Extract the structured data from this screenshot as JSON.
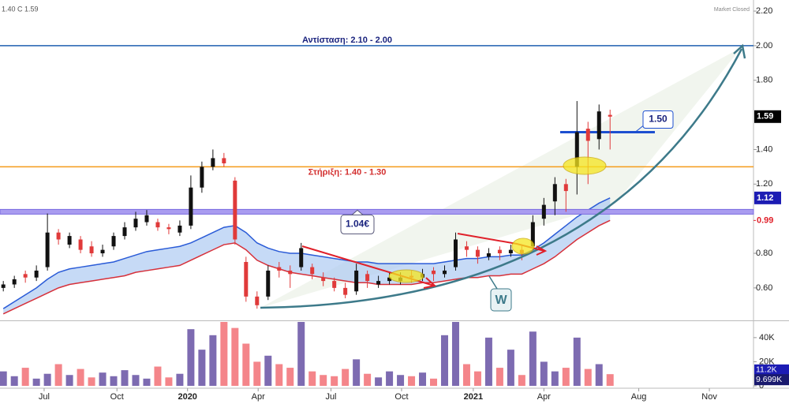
{
  "chart_data": {
    "type": "candlestick",
    "header_text": "1.40 C 1.59",
    "status_text": "Market Closed",
    "xlim": [
      -0.3,
      68
    ],
    "xticks": [
      {
        "value": 3.7,
        "label": "Jul"
      },
      {
        "value": 10.3,
        "label": "Oct"
      },
      {
        "value": 16.7,
        "label": "2020"
      },
      {
        "value": 23.1,
        "label": "Apr"
      },
      {
        "value": 29.7,
        "label": "Jul"
      },
      {
        "value": 36.1,
        "label": "Oct"
      },
      {
        "value": 42.6,
        "label": "2021"
      },
      {
        "value": 49,
        "label": "Apr"
      },
      {
        "value": 57.6,
        "label": "Aug"
      },
      {
        "value": 64,
        "label": "Nov"
      }
    ],
    "ylim": [
      0.417,
      2.264
    ],
    "yticks": [
      {
        "value": 0.6,
        "label": "0.60"
      },
      {
        "value": 0.8,
        "label": "0.80"
      },
      {
        "value": 1.2,
        "label": "1.20"
      },
      {
        "value": 1.4,
        "label": "1.40"
      },
      {
        "value": 1.8,
        "label": "1.80"
      },
      {
        "value": 2.0,
        "label": "2.00"
      },
      {
        "value": 2.2,
        "label": "2.20"
      }
    ],
    "volume_ylim": [
      0,
      53000
    ],
    "volume_yticks": [
      {
        "value": 0,
        "label": "0"
      },
      {
        "value": 20000,
        "label": "20K"
      },
      {
        "value": 40000,
        "label": "40K"
      }
    ],
    "up_color": "#111111",
    "down_color": "#e03a3a",
    "volume_up_color": "#7d6bb1",
    "volume_down_color": "#f4858a",
    "open": [
      0.6,
      0.62,
      0.68,
      0.66,
      0.72,
      0.92,
      0.85,
      0.88,
      0.84,
      0.8,
      0.84,
      0.9,
      0.95,
      0.98,
      0.98,
      0.95,
      0.92,
      0.96,
      1.18,
      1.3,
      1.35,
      1.22,
      0.75,
      0.55,
      0.55,
      0.72,
      0.7,
      0.72,
      0.72,
      0.66,
      0.64,
      0.6,
      0.58,
      0.68,
      0.62,
      0.64,
      0.64,
      0.67,
      0.66,
      0.7,
      0.68,
      0.72,
      0.84,
      0.82,
      0.78,
      0.82,
      0.8,
      0.82,
      0.84,
      1.0,
      1.1,
      1.2,
      1.3,
      1.52,
      1.46,
      1.6
    ],
    "high": [
      0.64,
      0.67,
      0.7,
      0.73,
      1.03,
      0.94,
      0.92,
      0.9,
      0.87,
      0.85,
      0.92,
      0.98,
      1.04,
      1.05,
      1.0,
      0.97,
      0.99,
      1.25,
      1.33,
      1.4,
      1.38,
      1.24,
      0.78,
      0.58,
      0.73,
      0.75,
      0.73,
      0.86,
      0.74,
      0.69,
      0.66,
      0.63,
      0.74,
      0.7,
      0.67,
      0.69,
      0.69,
      0.7,
      0.71,
      0.72,
      0.73,
      0.92,
      0.87,
      0.84,
      0.83,
      0.84,
      0.85,
      0.85,
      1.02,
      1.12,
      1.24,
      1.23,
      1.68,
      1.56,
      1.66,
      1.63
    ],
    "low": [
      0.58,
      0.6,
      0.63,
      0.64,
      0.7,
      0.85,
      0.83,
      0.8,
      0.78,
      0.78,
      0.82,
      0.88,
      0.93,
      0.96,
      0.93,
      0.91,
      0.9,
      0.94,
      1.15,
      1.28,
      1.3,
      0.85,
      0.52,
      0.48,
      0.53,
      0.66,
      0.6,
      0.7,
      0.65,
      0.61,
      0.58,
      0.54,
      0.56,
      0.6,
      0.6,
      0.62,
      0.62,
      0.63,
      0.64,
      0.64,
      0.66,
      0.7,
      0.78,
      0.74,
      0.76,
      0.76,
      0.78,
      0.76,
      0.82,
      0.96,
      1.02,
      1.04,
      1.14,
      1.2,
      1.4,
      1.4
    ],
    "close": [
      0.62,
      0.65,
      0.66,
      0.7,
      0.92,
      0.88,
      0.9,
      0.82,
      0.8,
      0.82,
      0.9,
      0.95,
      1.0,
      1.02,
      0.95,
      0.94,
      0.96,
      1.18,
      1.3,
      1.35,
      1.32,
      0.88,
      0.55,
      0.5,
      0.7,
      0.7,
      0.68,
      0.83,
      0.68,
      0.64,
      0.6,
      0.56,
      0.7,
      0.64,
      0.64,
      0.66,
      0.66,
      0.66,
      0.68,
      0.68,
      0.7,
      0.88,
      0.82,
      0.78,
      0.8,
      0.8,
      0.82,
      0.8,
      0.98,
      1.08,
      1.2,
      1.16,
      1.5,
      1.45,
      1.62,
      1.59
    ],
    "volume": [
      12000,
      8000,
      15000,
      6000,
      10000,
      18000,
      9000,
      14000,
      7000,
      11000,
      8000,
      13000,
      9000,
      6000,
      16000,
      7000,
      10000,
      47000,
      30000,
      42000,
      53000,
      48000,
      35000,
      20000,
      25000,
      18000,
      15000,
      53000,
      12000,
      9000,
      8000,
      14000,
      22000,
      10000,
      7000,
      12000,
      9000,
      8000,
      11000,
      6000,
      42000,
      53000,
      18000,
      12000,
      40000,
      15000,
      30000,
      9000,
      45000,
      20000,
      12000,
      15000,
      40000,
      14000,
      18000,
      9699
    ],
    "series": [
      {
        "color": "#2a5bd7",
        "values": [
          0.48,
          0.52,
          0.56,
          0.6,
          0.65,
          0.69,
          0.71,
          0.72,
          0.73,
          0.74,
          0.75,
          0.77,
          0.79,
          0.81,
          0.82,
          0.83,
          0.84,
          0.86,
          0.89,
          0.92,
          0.95,
          0.96,
          0.92,
          0.86,
          0.83,
          0.81,
          0.8,
          0.8,
          0.79,
          0.78,
          0.77,
          0.76,
          0.75,
          0.75,
          0.74,
          0.74,
          0.74,
          0.74,
          0.74,
          0.74,
          0.75,
          0.76,
          0.77,
          0.77,
          0.78,
          0.78,
          0.79,
          0.79,
          0.82,
          0.86,
          0.91,
          0.96,
          1.01,
          1.05,
          1.09,
          1.12
        ]
      },
      {
        "color": "#d6303a",
        "values": [
          0.45,
          0.48,
          0.51,
          0.54,
          0.57,
          0.6,
          0.62,
          0.63,
          0.64,
          0.65,
          0.66,
          0.67,
          0.69,
          0.7,
          0.71,
          0.72,
          0.73,
          0.76,
          0.79,
          0.82,
          0.85,
          0.86,
          0.82,
          0.76,
          0.73,
          0.71,
          0.69,
          0.68,
          0.67,
          0.66,
          0.65,
          0.64,
          0.63,
          0.63,
          0.62,
          0.62,
          0.62,
          0.62,
          0.63,
          0.63,
          0.64,
          0.65,
          0.66,
          0.66,
          0.67,
          0.67,
          0.68,
          0.68,
          0.71,
          0.74,
          0.78,
          0.83,
          0.88,
          0.92,
          0.96,
          0.99
        ]
      }
    ],
    "levels": [
      {
        "value": 2.0,
        "label": "Αντίσταση: 2.10 - 2.00",
        "color": "#1f5fb0"
      },
      {
        "value": 1.3,
        "label": "Στήριξη: 1.40 - 1.30",
        "color": "#f59b1a"
      },
      {
        "value": 1.04,
        "label": "1.04€",
        "color": "#7a6be0"
      },
      {
        "value": 1.5,
        "label": "1.50",
        "color": "#1d4fd0"
      }
    ],
    "price_labels": [
      {
        "value": 1.59,
        "label": "1.59",
        "color": "#000000",
        "boxed": true
      },
      {
        "value": 1.12,
        "label": "1.12",
        "color": "#1c1cb4",
        "boxed": true
      },
      {
        "value": 0.99,
        "label": "0.99",
        "color": "#e0202a",
        "boxed": false
      }
    ],
    "volume_labels": [
      {
        "value": 11200,
        "label": "11.2K",
        "color": "#1c1cb4"
      },
      {
        "value": 9699,
        "label": "9.699K",
        "color": "#1a1a6e"
      }
    ],
    "pattern_label": "W"
  }
}
